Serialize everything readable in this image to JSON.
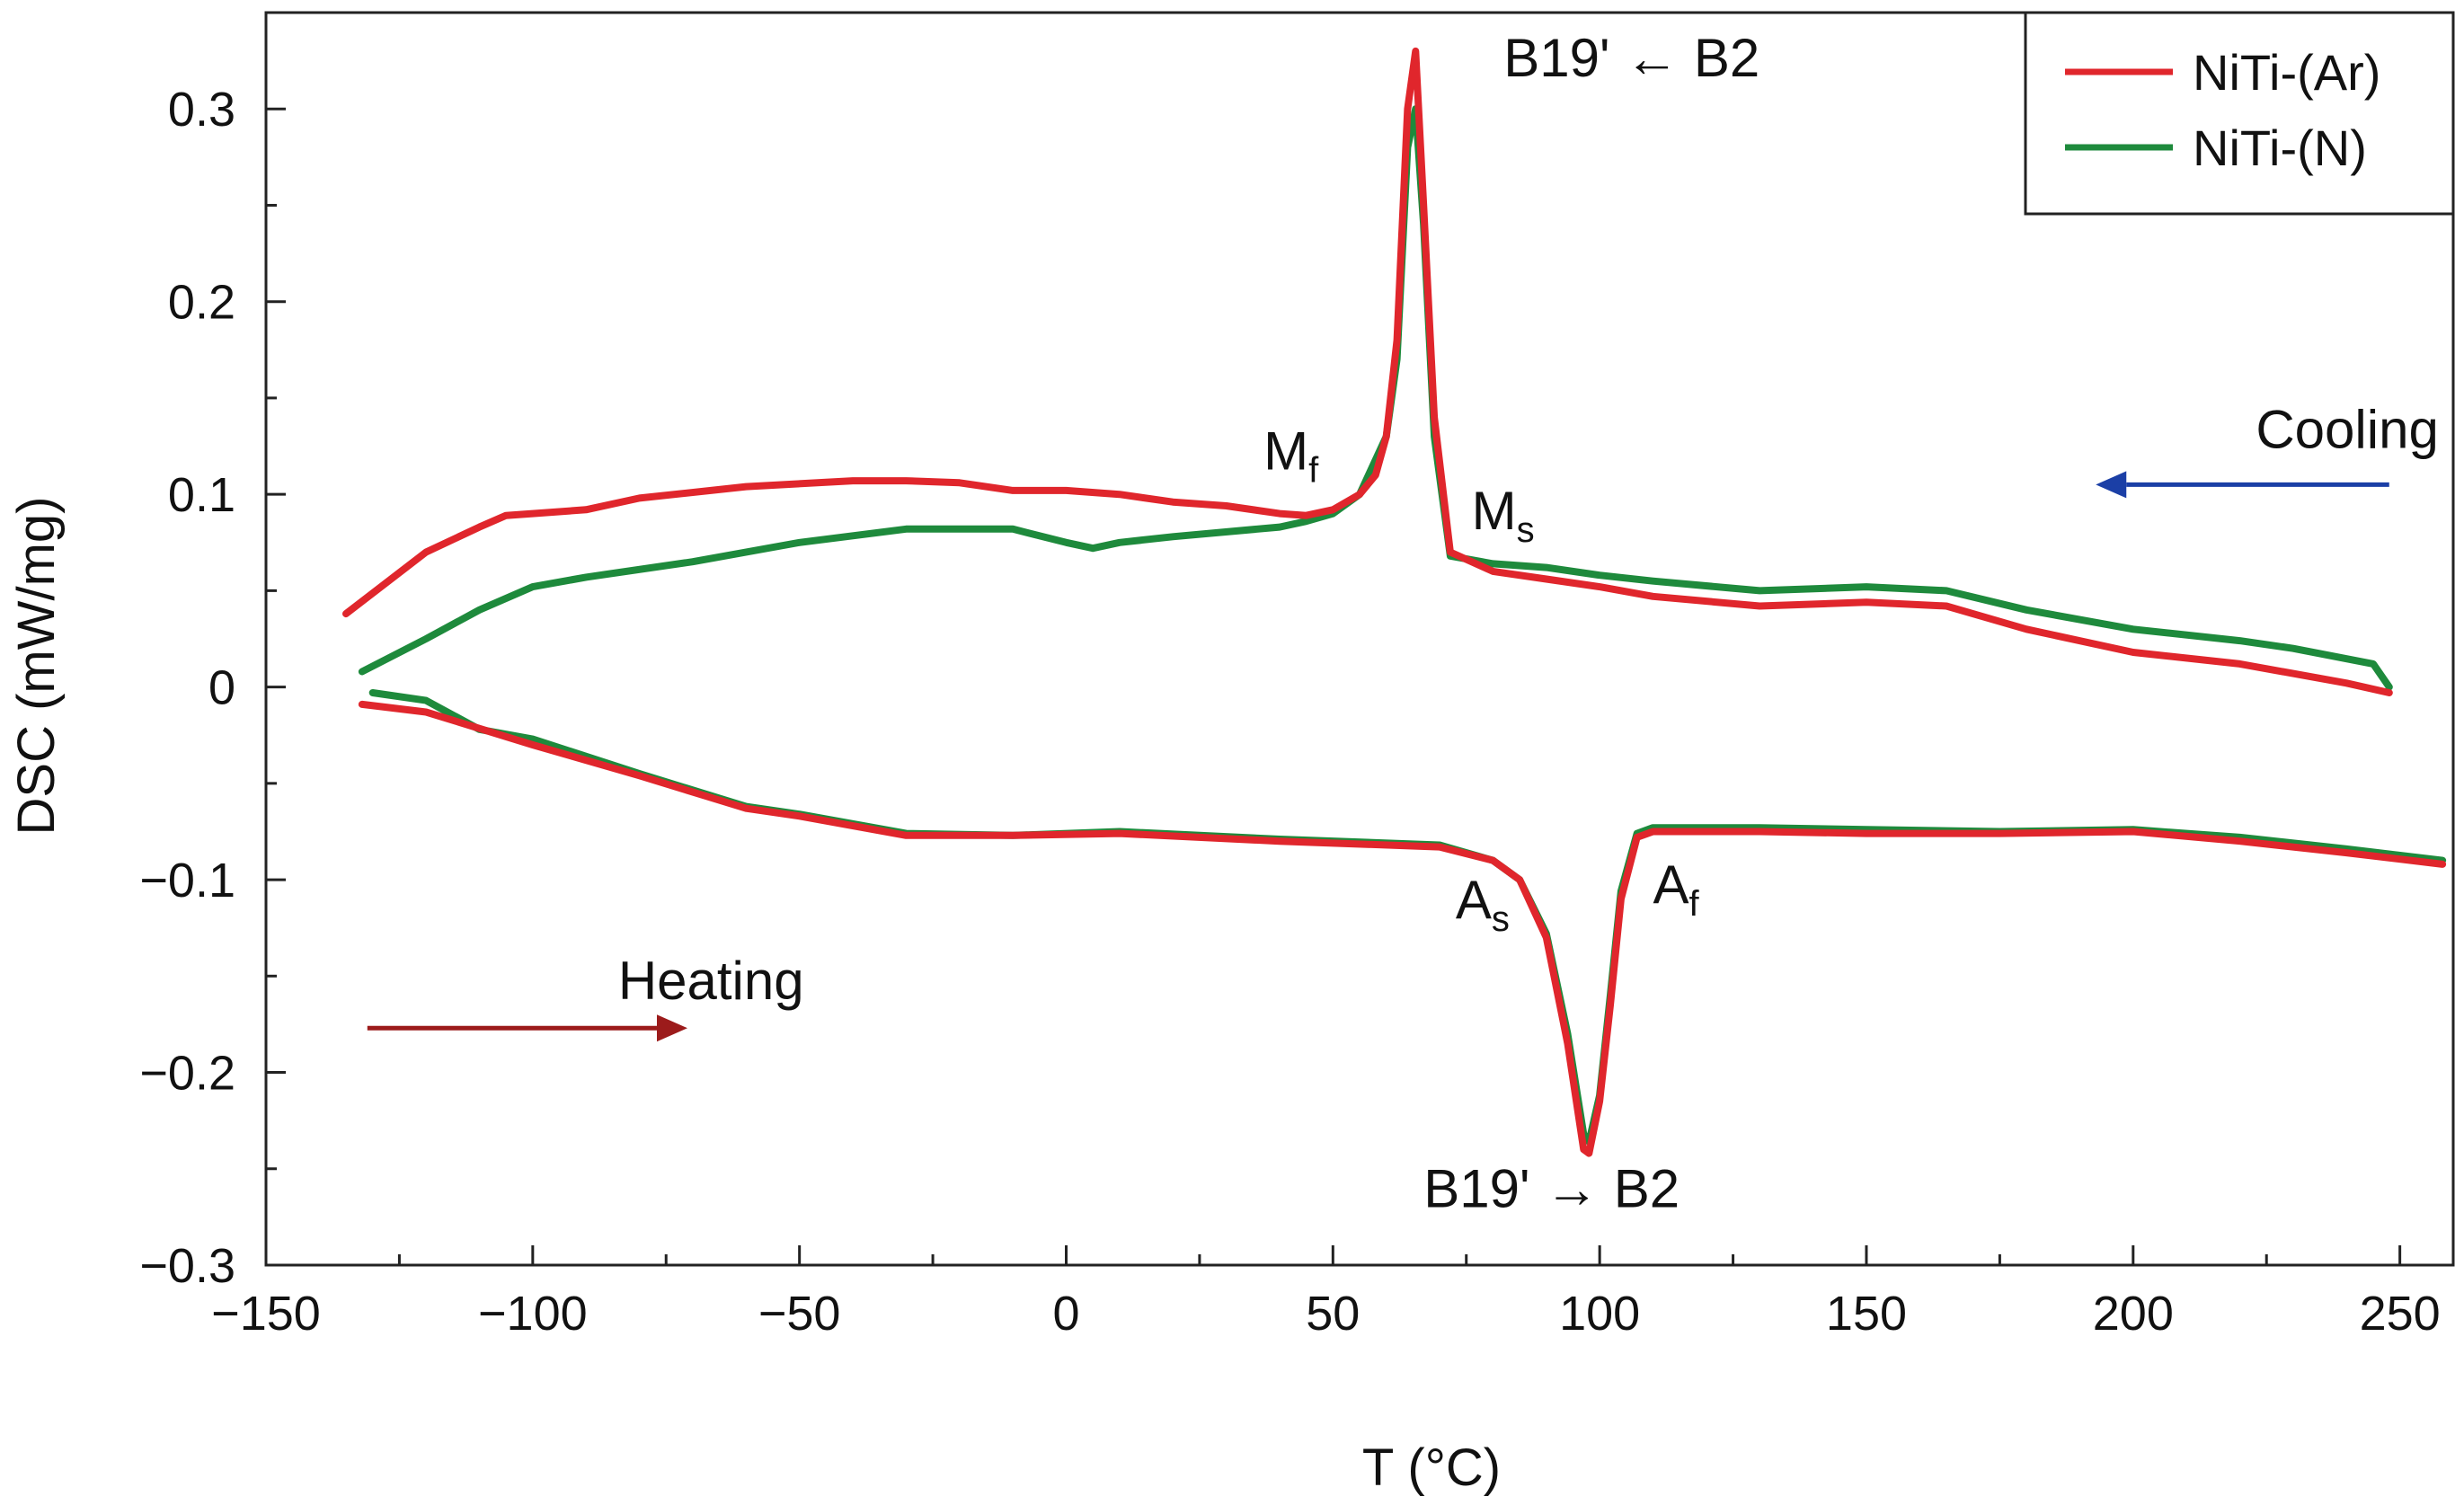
{
  "chart_data": {
    "type": "line",
    "title": "",
    "xlabel": "T (°C)",
    "ylabel": "DSC (mW/mg)",
    "xlim": [
      -150,
      260
    ],
    "ylim": [
      -0.3,
      0.35
    ],
    "x_ticks": [
      -150,
      -100,
      -50,
      0,
      50,
      100,
      150,
      200,
      250
    ],
    "x_tick_labels": [
      "−150",
      "−100",
      "−50",
      "0",
      "50",
      "100",
      "150",
      "200",
      "250"
    ],
    "y_ticks": [
      -0.3,
      -0.2,
      -0.1,
      0,
      0.1,
      0.2,
      0.3
    ],
    "y_tick_labels": [
      "−0.3",
      "−0.2",
      "−0.1",
      "0",
      "0.1",
      "0.2",
      "0.3"
    ],
    "legend": {
      "position": "top-right"
    },
    "series": [
      {
        "name": "NiTi-(Ar)",
        "color": "#e0262c",
        "segments": [
          {
            "label": "cooling",
            "x": [
              248,
              240,
              220,
              200,
              180,
              165,
              150,
              130,
              110,
              100,
              90,
              80,
              72,
              69,
              67,
              65.5,
              64,
              62,
              60,
              58,
              55,
              50,
              45,
              40,
              30,
              20,
              10,
              0,
              -10,
              -20,
              -30,
              -40,
              -60,
              -80,
              -90,
              -100,
              -105,
              -110,
              -120,
              -135
            ],
            "y": [
              -0.003,
              0.002,
              0.012,
              0.018,
              0.03,
              0.042,
              0.044,
              0.042,
              0.047,
              0.052,
              0.056,
              0.06,
              0.07,
              0.14,
              0.25,
              0.33,
              0.3,
              0.18,
              0.13,
              0.11,
              0.1,
              0.092,
              0.089,
              0.09,
              0.094,
              0.096,
              0.1,
              0.102,
              0.102,
              0.106,
              0.107,
              0.107,
              0.104,
              0.098,
              0.092,
              0.09,
              0.089,
              0.083,
              0.07,
              0.038
            ]
          },
          {
            "label": "heating",
            "x": [
              -132,
              -120,
              -100,
              -80,
              -60,
              -50,
              -30,
              -10,
              10,
              40,
              70,
              80,
              85,
              90,
              94,
              97,
              98,
              100,
              102,
              104,
              107,
              110,
              130,
              150,
              175,
              200,
              220,
              240,
              258
            ],
            "y": [
              -0.009,
              -0.013,
              -0.03,
              -0.046,
              -0.063,
              -0.067,
              -0.077,
              -0.077,
              -0.076,
              -0.08,
              -0.083,
              -0.09,
              -0.1,
              -0.13,
              -0.185,
              -0.24,
              -0.242,
              -0.215,
              -0.165,
              -0.11,
              -0.078,
              -0.075,
              -0.075,
              -0.076,
              -0.076,
              -0.075,
              -0.08,
              -0.086,
              -0.092
            ]
          }
        ]
      },
      {
        "name": "NiTi-(N)",
        "color": "#1e8a3c",
        "segments": [
          {
            "label": "cooling",
            "x": [
              248,
              245,
              230,
              220,
              200,
              180,
              165,
              150,
              130,
              110,
              100,
              90,
              80,
              72,
              69,
              67,
              65.5,
              64,
              62,
              60,
              55,
              50,
              45,
              40,
              20,
              10,
              5,
              0,
              -10,
              -30,
              -50,
              -70,
              -90,
              -100,
              -110,
              -120,
              -132
            ],
            "y": [
              0.0,
              0.012,
              0.02,
              0.024,
              0.03,
              0.04,
              0.05,
              0.052,
              0.05,
              0.055,
              0.058,
              0.062,
              0.064,
              0.068,
              0.13,
              0.24,
              0.3,
              0.28,
              0.17,
              0.13,
              0.1,
              0.09,
              0.086,
              0.083,
              0.078,
              0.075,
              0.072,
              0.075,
              0.082,
              0.082,
              0.075,
              0.065,
              0.057,
              0.052,
              0.04,
              0.025,
              0.008
            ]
          },
          {
            "label": "heating",
            "x": [
              -130,
              -120,
              -110,
              -100,
              -80,
              -60,
              -50,
              -30,
              -10,
              10,
              40,
              70,
              80,
              85,
              90,
              94,
              97,
              98,
              100,
              102,
              104,
              107,
              110,
              130,
              150,
              175,
              200,
              220,
              240,
              258
            ],
            "y": [
              -0.003,
              -0.007,
              -0.022,
              -0.027,
              -0.045,
              -0.062,
              -0.066,
              -0.076,
              -0.077,
              -0.075,
              -0.079,
              -0.082,
              -0.09,
              -0.1,
              -0.128,
              -0.18,
              -0.232,
              -0.236,
              -0.212,
              -0.16,
              -0.106,
              -0.076,
              -0.073,
              -0.073,
              -0.074,
              -0.075,
              -0.074,
              -0.078,
              -0.084,
              -0.09
            ]
          }
        ]
      }
    ],
    "annotations": [
      {
        "name": "peak-cooling",
        "text": "B19' ← B2",
        "x": 82,
        "y": 0.317
      },
      {
        "name": "peak-heating",
        "text": "B19' → B2",
        "x": 67,
        "y": -0.27
      },
      {
        "name": "mf",
        "main": "M",
        "sub": "f",
        "x": 37,
        "y": 0.113
      },
      {
        "name": "ms",
        "main": "M",
        "sub": "s",
        "x": 76,
        "y": 0.082
      },
      {
        "name": "as",
        "main": "A",
        "sub": "s",
        "x": 73,
        "y": -0.12
      },
      {
        "name": "af",
        "main": "A",
        "sub": "f",
        "x": 110,
        "y": -0.112
      },
      {
        "name": "cooling",
        "text": "Cooling",
        "x": 223,
        "y": 0.124,
        "color": "#1b3fa6"
      },
      {
        "name": "heating",
        "text": "Heating",
        "x": -84,
        "y": -0.162,
        "color": "#9c1b1b"
      }
    ],
    "arrows": [
      {
        "name": "cooling-arrow",
        "from_x": 248,
        "to_x": 193,
        "y": 0.105,
        "color": "#1b3fa6"
      },
      {
        "name": "heating-arrow",
        "from_x": -131,
        "to_x": -71,
        "y": -0.177,
        "color": "#9c1b1b"
      }
    ]
  }
}
